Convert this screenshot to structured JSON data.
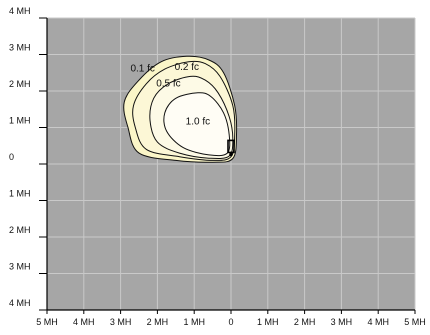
{
  "chart_data": {
    "type": "contour",
    "title": "",
    "xlabel": "",
    "ylabel": "",
    "x_ticks": [
      "5 MH",
      "4 MH",
      "3 MH",
      "2 MH",
      "1 MH",
      "0",
      "1 MH",
      "2 MH",
      "3 MH",
      "4 MH",
      "5 MH"
    ],
    "y_ticks": [
      "4 MH",
      "3 MH",
      "2 MH",
      "1 MH",
      "0",
      "1 MH",
      "2 MH",
      "3 MH",
      "4 MH"
    ],
    "x_range": [
      -5,
      5
    ],
    "y_range": [
      -4,
      4
    ],
    "grid": true,
    "background_color": "#a6a6a6",
    "grid_color": "#c9c9c9",
    "luminaire": {
      "x": 0.0,
      "y": 0.4,
      "label": ""
    },
    "contours": [
      {
        "level": "0.1 fc",
        "fill": "#fbf6c8",
        "label_at": [
          -2.4,
          2.6
        ],
        "points": [
          [
            -1.2,
            2.95
          ],
          [
            -0.6,
            2.85
          ],
          [
            -0.2,
            2.5
          ],
          [
            0.1,
            1.6
          ],
          [
            0.15,
            0.8
          ],
          [
            0.05,
            0.15
          ],
          [
            -0.5,
            0.05
          ],
          [
            -1.5,
            0.1
          ],
          [
            -2.5,
            0.3
          ],
          [
            -2.8,
            1.0
          ],
          [
            -2.9,
            1.7
          ],
          [
            -2.5,
            2.3
          ],
          [
            -1.9,
            2.8
          ]
        ]
      },
      {
        "level": "0.2 fc",
        "fill": "#fcf7d6",
        "label_at": [
          -1.2,
          2.65
        ],
        "points": [
          [
            -1.15,
            2.8
          ],
          [
            -0.7,
            2.75
          ],
          [
            -0.3,
            2.4
          ],
          [
            0.05,
            1.6
          ],
          [
            0.1,
            0.8
          ],
          [
            0.0,
            0.2
          ],
          [
            -0.5,
            0.1
          ],
          [
            -1.4,
            0.2
          ],
          [
            -2.3,
            0.4
          ],
          [
            -2.6,
            1.0
          ],
          [
            -2.65,
            1.6
          ],
          [
            -2.3,
            2.2
          ],
          [
            -1.8,
            2.6
          ]
        ]
      },
      {
        "level": "0.5 fc",
        "fill": "#fdfae6",
        "label_at": [
          -1.7,
          2.2
        ],
        "points": [
          [
            -1.1,
            2.4
          ],
          [
            -0.7,
            2.3
          ],
          [
            -0.35,
            1.95
          ],
          [
            -0.05,
            1.3
          ],
          [
            0.05,
            0.7
          ],
          [
            -0.05,
            0.22
          ],
          [
            -0.6,
            0.16
          ],
          [
            -1.4,
            0.3
          ],
          [
            -2.0,
            0.6
          ],
          [
            -2.2,
            1.2
          ],
          [
            -2.1,
            1.8
          ],
          [
            -1.7,
            2.2
          ]
        ]
      },
      {
        "level": "1.0 fc",
        "fill": "#fffdf5",
        "label_at": [
          -0.9,
          1.15
        ],
        "points": [
          [
            -0.9,
            1.95
          ],
          [
            -0.55,
            1.85
          ],
          [
            -0.2,
            1.4
          ],
          [
            -0.05,
            0.8
          ],
          [
            -0.1,
            0.3
          ],
          [
            -0.6,
            0.25
          ],
          [
            -1.3,
            0.45
          ],
          [
            -1.75,
            0.9
          ],
          [
            -1.8,
            1.4
          ],
          [
            -1.5,
            1.8
          ]
        ]
      }
    ]
  }
}
